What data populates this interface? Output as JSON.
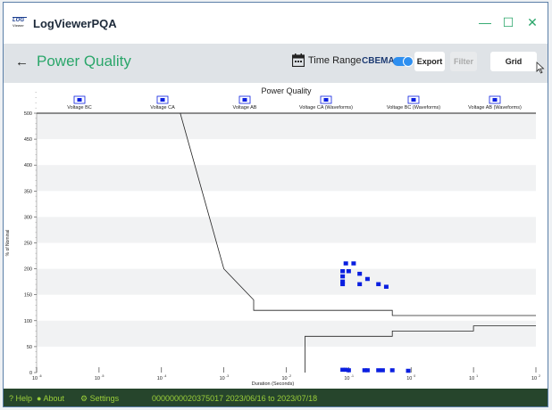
{
  "app": {
    "title": "LogViewerPQA",
    "logo_text": "LOG",
    "logo_sub": "Viewer"
  },
  "window_controls": {
    "minimize": "—",
    "maximize": "☐",
    "close": "✕"
  },
  "toolbar": {
    "back_icon": "←",
    "page_title": "Power Quality",
    "time_range_label": "Time Range",
    "cbema_label": "CBEMA",
    "cbema_on": true,
    "export_label": "Export",
    "filter_label": "Filter",
    "grid_label": "Grid"
  },
  "chart_data": {
    "type": "scatter",
    "title": "Power Quality",
    "xlabel": "Duration (Seconds)",
    "ylabel": "% of Nominal",
    "x_scale": "log",
    "xlim": [
      1e-06,
      100
    ],
    "ylim": [
      0,
      500
    ],
    "y_ticks": [
      0,
      50,
      100,
      150,
      200,
      250,
      300,
      350,
      400,
      450,
      500
    ],
    "x_ticks": [
      {
        "v": 1e-06,
        "base": "10",
        "exp": "-6"
      },
      {
        "v": 1e-05,
        "base": "10",
        "exp": "-5"
      },
      {
        "v": 0.0001,
        "base": "10",
        "exp": "-4"
      },
      {
        "v": 0.001,
        "base": "10",
        "exp": "-3"
      },
      {
        "v": 0.01,
        "base": "10",
        "exp": "-2"
      },
      {
        "v": 0.1,
        "base": "10",
        "exp": "-1"
      },
      {
        "v": 1,
        "base": "10",
        "exp": "0"
      },
      {
        "v": 10,
        "base": "10",
        "exp": "1"
      },
      {
        "v": 100,
        "base": "10",
        "exp": "2"
      }
    ],
    "legend_position": "top",
    "legend": [
      "Voltage BC",
      "Voltage CA",
      "Voltage AB",
      "Voltage CA (Waveforms)",
      "Voltage BC (Waveforms)",
      "Voltage AB (Waveforms)"
    ],
    "grid": "horizontal bands",
    "curves": [
      {
        "name": "upper",
        "points": [
          [
            1e-06,
            500
          ],
          [
            0.0002,
            500
          ],
          [
            0.001,
            200
          ],
          [
            0.003,
            140
          ],
          [
            0.003,
            120
          ],
          [
            0.5,
            120
          ],
          [
            0.5,
            110
          ],
          [
            100,
            110
          ]
        ]
      },
      {
        "name": "lower",
        "points": [
          [
            0.02,
            0
          ],
          [
            0.02,
            70
          ],
          [
            0.5,
            70
          ],
          [
            0.5,
            80
          ],
          [
            10,
            80
          ],
          [
            10,
            90
          ],
          [
            100,
            90
          ]
        ]
      }
    ],
    "series": [
      {
        "color": "#0a1fe0",
        "points": [
          [
            0.09,
            210
          ],
          [
            0.12,
            210
          ],
          [
            0.08,
            195
          ],
          [
            0.1,
            195
          ],
          [
            0.08,
            185
          ],
          [
            0.15,
            190
          ],
          [
            0.08,
            175
          ],
          [
            0.2,
            180
          ],
          [
            0.08,
            170
          ],
          [
            0.15,
            170
          ],
          [
            0.3,
            170
          ],
          [
            0.4,
            165
          ],
          [
            0.08,
            5
          ],
          [
            0.09,
            5
          ],
          [
            0.1,
            4
          ],
          [
            0.18,
            4
          ],
          [
            0.2,
            4
          ],
          [
            0.3,
            4
          ],
          [
            0.35,
            4
          ],
          [
            0.5,
            4
          ],
          [
            0.9,
            3
          ]
        ]
      }
    ]
  },
  "status": {
    "help": "Help",
    "about": "About",
    "settings": "Settings",
    "info": "0000000020375017  2023/06/16 to 2023/07/18"
  }
}
